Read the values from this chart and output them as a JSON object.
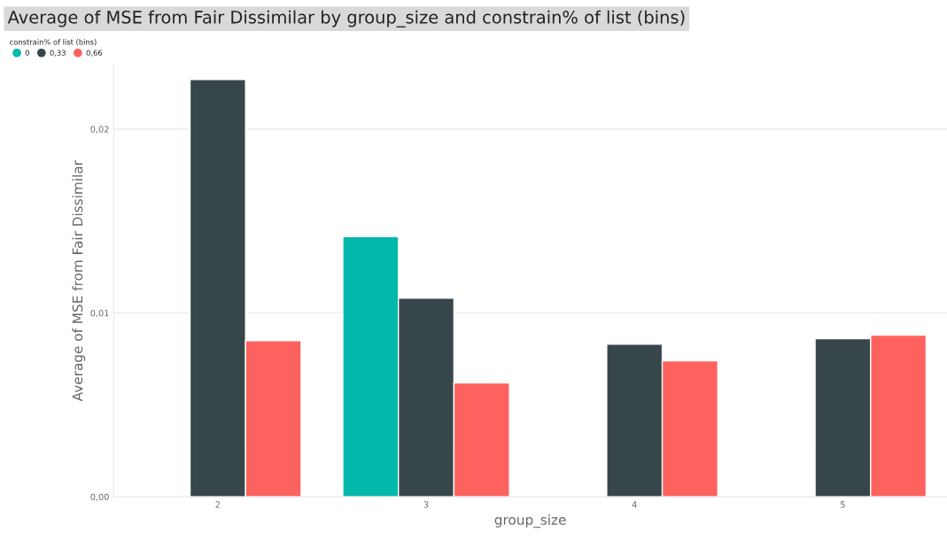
{
  "chart_data": {
    "type": "bar",
    "title": "Average of MSE from Fair Dissimilar by group_size and constrain% of list (bins)",
    "xlabel": "group_size",
    "ylabel": "Average of MSE from Fair Dissimilar",
    "legend_title": "constrain% of list (bins)",
    "categories": [
      "2",
      "3",
      "4",
      "5"
    ],
    "series": [
      {
        "name": "0",
        "color": "#01b8aa",
        "values": [
          null,
          0.01415,
          null,
          null
        ]
      },
      {
        "name": "0,33",
        "color": "#374649",
        "values": [
          0.0227,
          0.0108,
          0.0083,
          0.0086
        ]
      },
      {
        "name": "0,66",
        "color": "#fd625e",
        "values": [
          0.0085,
          0.0062,
          0.0074,
          0.0088
        ]
      }
    ],
    "ylim": [
      0,
      0.0235
    ],
    "yticks": [
      {
        "value": 0,
        "label": "0,00"
      },
      {
        "value": 0.01,
        "label": "0,01"
      },
      {
        "value": 0.02,
        "label": "0,02"
      }
    ],
    "grid": "y",
    "legend": "top left"
  }
}
